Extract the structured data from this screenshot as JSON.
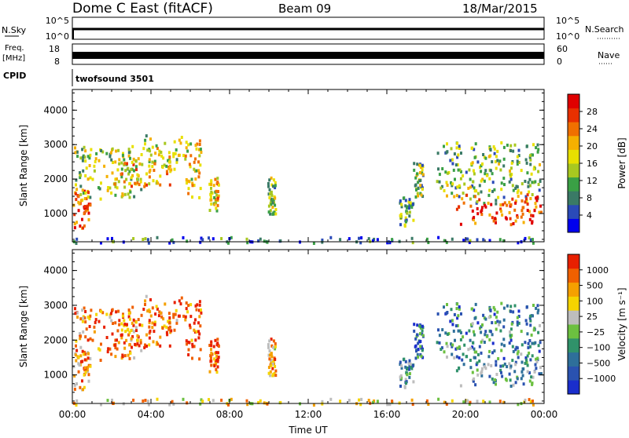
{
  "header": {
    "station": "Dome C East (fitACF)",
    "beam": "Beam 09",
    "date": "18/Mar/2015"
  },
  "status_panels": {
    "nsky_label": "N.Sky",
    "nsky_ticks": [
      "10^5",
      "10^0"
    ],
    "nsearch_label": "N.Search",
    "nsearch_ticks": [
      "10^5",
      "10^0"
    ],
    "freq_label": "Freq.",
    "freq_unit": "[MHz]",
    "freq_ticks": [
      "18",
      "8"
    ],
    "nave_label": "Nave",
    "nave_ticks": [
      "60",
      "0"
    ],
    "cpid_label": "CPID",
    "cpid_value": "twofsound 3501"
  },
  "chart_data": [
    {
      "type": "heatmap",
      "panel": "power",
      "ylabel": "Slant Range [km]",
      "xlabel": "",
      "x_ticks": [
        "00:00",
        "04:00",
        "08:00",
        "12:00",
        "16:00",
        "20:00",
        "00:00"
      ],
      "xlim_hours": [
        0,
        24
      ],
      "y_ticks": [
        1000,
        2000,
        3000,
        4000
      ],
      "ylim": [
        180,
        4600
      ],
      "colorbar": {
        "label": "Power [dB]",
        "ticks": [
          "4",
          "8",
          "12",
          "16",
          "20",
          "24",
          "28"
        ],
        "colors": [
          "#0000ee",
          "#2a4ab8",
          "#3a7a66",
          "#3aa045",
          "#a8c820",
          "#e8e000",
          "#f5b000",
          "#f07000",
          "#e83000",
          "#e00000"
        ]
      },
      "regions": [
        {
          "x": [
            0.0,
            0.9
          ],
          "y": [
            600,
            1700
          ],
          "level": 0.85
        },
        {
          "x": [
            0.0,
            3.5
          ],
          "y": [
            1400,
            3000
          ],
          "level": 0.45
        },
        {
          "x": [
            2.0,
            5.0
          ],
          "y": [
            1800,
            2700
          ],
          "level": 0.6
        },
        {
          "x": [
            3.5,
            5.8
          ],
          "y": [
            2300,
            3300
          ],
          "level": 0.5
        },
        {
          "x": [
            5.7,
            6.5
          ],
          "y": [
            1500,
            3200
          ],
          "level": 0.55
        },
        {
          "x": [
            6.9,
            7.4
          ],
          "y": [
            1100,
            2100
          ],
          "level": 0.6
        },
        {
          "x": [
            9.9,
            10.3
          ],
          "y": [
            1000,
            2100
          ],
          "level": 0.4
        },
        {
          "x": [
            16.6,
            17.3
          ],
          "y": [
            600,
            1500
          ],
          "level": 0.35
        },
        {
          "x": [
            17.3,
            17.8
          ],
          "y": [
            1500,
            2500
          ],
          "level": 0.4
        },
        {
          "x": [
            18.5,
            23.8
          ],
          "y": [
            1300,
            3100
          ],
          "level": 0.4
        },
        {
          "x": [
            19.5,
            23.8
          ],
          "y": [
            700,
            1600
          ],
          "level": 0.85
        },
        {
          "x": [
            0.0,
            24.0
          ],
          "y": [
            180,
            350
          ],
          "level": 0.2
        }
      ]
    },
    {
      "type": "heatmap",
      "panel": "velocity",
      "ylabel": "Slant Range [km]",
      "xlabel": "Time UT",
      "x_ticks": [
        "00:00",
        "04:00",
        "08:00",
        "12:00",
        "16:00",
        "20:00",
        "00:00"
      ],
      "xlim_hours": [
        0,
        24
      ],
      "y_ticks": [
        1000,
        2000,
        3000,
        4000
      ],
      "ylim": [
        180,
        4600
      ],
      "colorbar": {
        "label": "Velocity [m s⁻¹]",
        "ticks": [
          "1000",
          "500",
          "100",
          "25",
          "−25",
          "−100",
          "−500",
          "−1000"
        ],
        "colors": [
          "#1a2ecc",
          "#2a52b0",
          "#2e6f9a",
          "#30926a",
          "#6cc040",
          "#bdbdbd",
          "#f5d400",
          "#f5a000",
          "#f06000",
          "#e82000"
        ]
      },
      "regions": [
        {
          "x": [
            0.0,
            0.9
          ],
          "y": [
            600,
            1700
          ],
          "level": 0.75
        },
        {
          "x": [
            0.0,
            3.5
          ],
          "y": [
            1400,
            3000
          ],
          "level": 0.78
        },
        {
          "x": [
            2.0,
            5.0
          ],
          "y": [
            1800,
            2700
          ],
          "level": 0.8
        },
        {
          "x": [
            3.5,
            5.8
          ],
          "y": [
            2300,
            3300
          ],
          "level": 0.82
        },
        {
          "x": [
            5.7,
            6.5
          ],
          "y": [
            1500,
            3200
          ],
          "level": 0.85
        },
        {
          "x": [
            6.9,
            7.4
          ],
          "y": [
            1100,
            2100
          ],
          "level": 0.92
        },
        {
          "x": [
            9.9,
            10.3
          ],
          "y": [
            1000,
            2100
          ],
          "level": 0.7
        },
        {
          "x": [
            16.6,
            17.3
          ],
          "y": [
            600,
            1500
          ],
          "level": 0.35
        },
        {
          "x": [
            17.3,
            17.8
          ],
          "y": [
            1500,
            2500
          ],
          "level": 0.2
        },
        {
          "x": [
            18.5,
            23.8
          ],
          "y": [
            1300,
            3100
          ],
          "level": 0.3
        },
        {
          "x": [
            19.5,
            23.8
          ],
          "y": [
            700,
            1600
          ],
          "level": 0.35
        },
        {
          "x": [
            0.0,
            24.0
          ],
          "y": [
            180,
            350
          ],
          "level": 0.65
        }
      ]
    }
  ]
}
